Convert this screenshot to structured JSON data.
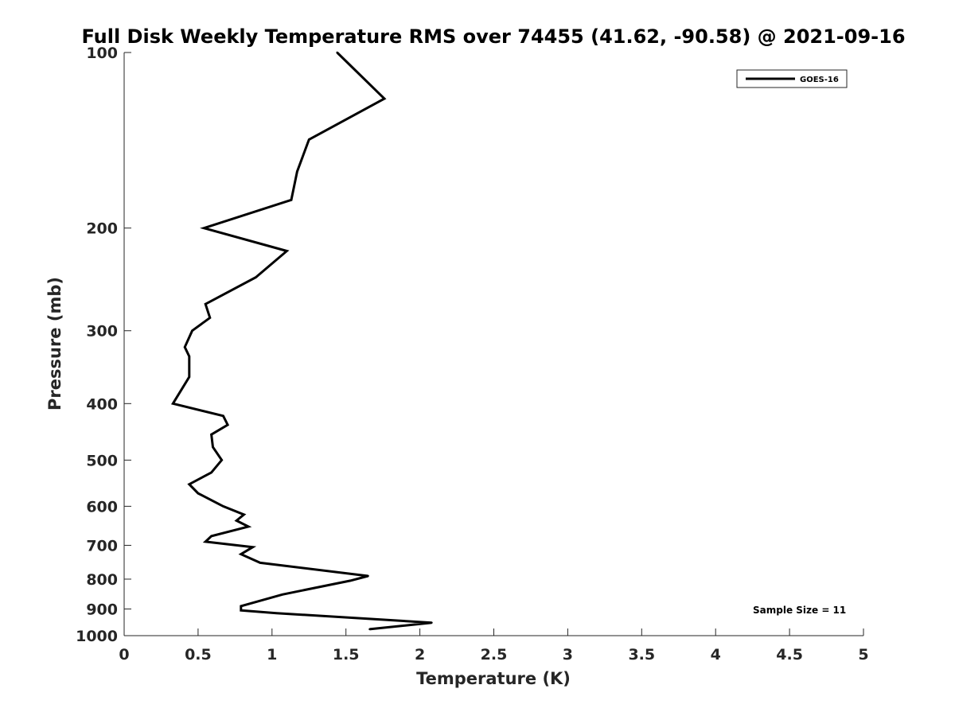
{
  "chart_data": {
    "type": "line",
    "title": "Full Disk Weekly Temperature RMS over 74455 (41.62, -90.58) @ 2021-09-16",
    "xlabel": "Temperature (K)",
    "ylabel": "Pressure (mb)",
    "xlim": [
      0,
      5
    ],
    "ylim": [
      100,
      1000
    ],
    "yscale": "log",
    "yreversed": true,
    "xticks": [
      0,
      0.5,
      1,
      1.5,
      2,
      2.5,
      3,
      3.5,
      4,
      4.5,
      5
    ],
    "xtick_labels": [
      "0",
      "0.5",
      "1",
      "1.5",
      "2",
      "2.5",
      "3",
      "3.5",
      "4",
      "4.5",
      "5"
    ],
    "yticks": [
      100,
      200,
      300,
      400,
      500,
      600,
      700,
      800,
      900,
      1000
    ],
    "ytick_labels": [
      "100",
      "200",
      "300",
      "400",
      "500",
      "600",
      "700",
      "800",
      "900",
      "1000"
    ],
    "grid": false,
    "legend_position": "top-right",
    "series": [
      {
        "name": "GOES-16",
        "color": "#000000",
        "points": [
          {
            "x": 1.44,
            "y": 100
          },
          {
            "x": 1.76,
            "y": 120
          },
          {
            "x": 1.25,
            "y": 141
          },
          {
            "x": 1.17,
            "y": 160
          },
          {
            "x": 1.13,
            "y": 179
          },
          {
            "x": 0.54,
            "y": 200
          },
          {
            "x": 1.1,
            "y": 219
          },
          {
            "x": 0.89,
            "y": 243
          },
          {
            "x": 0.55,
            "y": 270
          },
          {
            "x": 0.58,
            "y": 285
          },
          {
            "x": 0.46,
            "y": 300
          },
          {
            "x": 0.41,
            "y": 320
          },
          {
            "x": 0.44,
            "y": 332
          },
          {
            "x": 0.44,
            "y": 360
          },
          {
            "x": 0.33,
            "y": 400
          },
          {
            "x": 0.67,
            "y": 420
          },
          {
            "x": 0.7,
            "y": 435
          },
          {
            "x": 0.59,
            "y": 452
          },
          {
            "x": 0.6,
            "y": 475
          },
          {
            "x": 0.66,
            "y": 500
          },
          {
            "x": 0.59,
            "y": 525
          },
          {
            "x": 0.44,
            "y": 550
          },
          {
            "x": 0.5,
            "y": 570
          },
          {
            "x": 0.67,
            "y": 600
          },
          {
            "x": 0.81,
            "y": 620
          },
          {
            "x": 0.76,
            "y": 635
          },
          {
            "x": 0.84,
            "y": 650
          },
          {
            "x": 0.59,
            "y": 675
          },
          {
            "x": 0.55,
            "y": 690
          },
          {
            "x": 0.87,
            "y": 705
          },
          {
            "x": 0.79,
            "y": 725
          },
          {
            "x": 0.92,
            "y": 750
          },
          {
            "x": 1.65,
            "y": 790
          },
          {
            "x": 1.53,
            "y": 805
          },
          {
            "x": 1.07,
            "y": 850
          },
          {
            "x": 0.79,
            "y": 890
          },
          {
            "x": 0.79,
            "y": 905
          },
          {
            "x": 1.03,
            "y": 915
          },
          {
            "x": 2.08,
            "y": 950
          },
          {
            "x": 1.66,
            "y": 975
          }
        ]
      }
    ],
    "annotations": [
      {
        "text": "Sample Size = 11",
        "position": "bottom-right"
      }
    ]
  }
}
